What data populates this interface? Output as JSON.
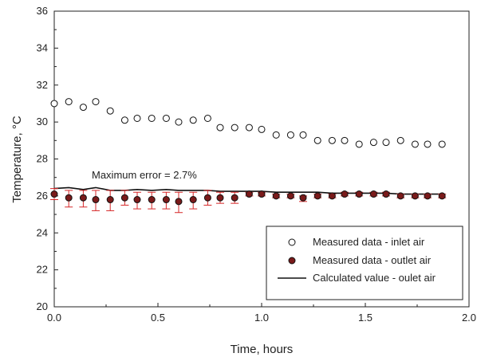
{
  "chart_data": {
    "type": "scatter",
    "xlabel": "Time, hours",
    "ylabel": "Temperature, °C",
    "xlim": [
      0.0,
      2.0
    ],
    "ylim": [
      20,
      36
    ],
    "xticks": [
      "0.0",
      "0.5",
      "1.0",
      "1.5",
      "2.0"
    ],
    "yticks": [
      "20",
      "22",
      "24",
      "26",
      "28",
      "30",
      "32",
      "34",
      "36"
    ],
    "grid": false,
    "legend_position": "bottom-right",
    "annotation": "Maximum error = 2.7%",
    "error_color": "#d62728",
    "series": [
      {
        "name": "Measured data - inlet air",
        "marker": "open-circle",
        "x": [
          0.0,
          0.07,
          0.14,
          0.2,
          0.27,
          0.34,
          0.4,
          0.47,
          0.54,
          0.6,
          0.67,
          0.74,
          0.8,
          0.87,
          0.94,
          1.0,
          1.07,
          1.14,
          1.2,
          1.27,
          1.34,
          1.4,
          1.47,
          1.54,
          1.6,
          1.67,
          1.74,
          1.8,
          1.87
        ],
        "y": [
          31.0,
          31.1,
          30.8,
          31.1,
          30.6,
          30.1,
          30.2,
          30.2,
          30.2,
          30.0,
          30.1,
          30.2,
          29.7,
          29.7,
          29.7,
          29.6,
          29.3,
          29.3,
          29.3,
          29.0,
          29.0,
          29.0,
          28.8,
          28.9,
          28.9,
          29.0,
          28.8,
          28.8,
          28.8
        ]
      },
      {
        "name": "Measured data - outlet air",
        "marker": "filled-circle",
        "x": [
          0.0,
          0.07,
          0.14,
          0.2,
          0.27,
          0.34,
          0.4,
          0.47,
          0.54,
          0.6,
          0.67,
          0.74,
          0.8,
          0.87,
          0.94,
          1.0,
          1.07,
          1.14,
          1.2,
          1.27,
          1.34,
          1.4,
          1.47,
          1.54,
          1.6,
          1.67,
          1.74,
          1.8,
          1.87
        ],
        "y": [
          26.1,
          25.9,
          25.9,
          25.8,
          25.8,
          25.9,
          25.8,
          25.8,
          25.8,
          25.7,
          25.8,
          25.9,
          25.9,
          25.9,
          26.1,
          26.1,
          26.0,
          26.0,
          25.9,
          26.0,
          26.0,
          26.1,
          26.1,
          26.1,
          26.1,
          26.0,
          26.0,
          26.0,
          26.0
        ],
        "error_low": [
          0.3,
          0.5,
          0.5,
          0.6,
          0.6,
          0.4,
          0.5,
          0.5,
          0.5,
          0.6,
          0.5,
          0.4,
          0.3,
          0.3,
          0.1,
          0.1,
          0.1,
          0.1,
          0.2,
          0.1,
          0.1,
          0.1,
          0.1,
          0.1,
          0.1,
          0.1,
          0.1,
          0.1,
          0.1
        ],
        "error_high": [
          0.3,
          0.4,
          0.4,
          0.5,
          0.5,
          0.4,
          0.4,
          0.4,
          0.4,
          0.5,
          0.4,
          0.4,
          0.3,
          0.3,
          0.1,
          0.1,
          0.1,
          0.1,
          0.1,
          0.1,
          0.1,
          0.1,
          0.1,
          0.1,
          0.1,
          0.1,
          0.1,
          0.1,
          0.1
        ]
      },
      {
        "name": "Calculated value - oulet air",
        "marker": "line",
        "x": [
          0.0,
          0.07,
          0.14,
          0.2,
          0.27,
          0.34,
          0.4,
          0.47,
          0.54,
          0.6,
          0.67,
          0.74,
          0.8,
          0.87,
          0.94,
          1.0,
          1.07,
          1.14,
          1.2,
          1.27,
          1.34,
          1.4,
          1.47,
          1.54,
          1.6,
          1.67,
          1.74,
          1.8,
          1.87
        ],
        "y": [
          26.4,
          26.45,
          26.35,
          26.45,
          26.3,
          26.3,
          26.35,
          26.3,
          26.35,
          26.3,
          26.3,
          26.3,
          26.25,
          26.25,
          26.25,
          26.25,
          26.2,
          26.2,
          26.2,
          26.2,
          26.15,
          26.15,
          26.15,
          26.15,
          26.15,
          26.1,
          26.1,
          26.1,
          26.1
        ]
      }
    ]
  }
}
